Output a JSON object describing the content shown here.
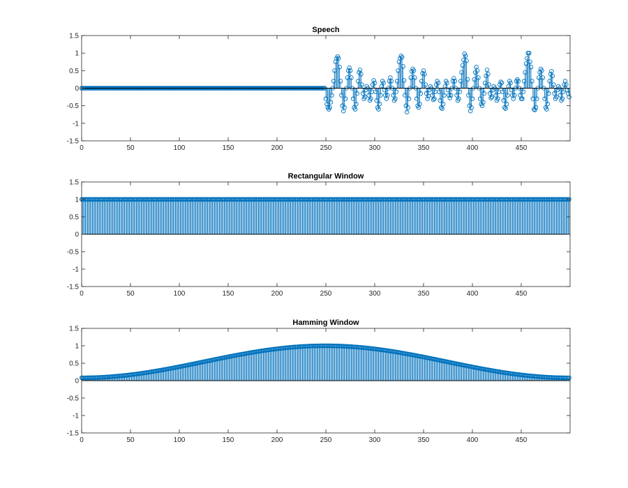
{
  "chart_data": [
    {
      "type": "stem",
      "title": "Speech",
      "xlim": [
        0,
        500
      ],
      "ylim": [
        -1.5,
        1.5
      ],
      "x_ticks": [
        0,
        50,
        100,
        150,
        200,
        250,
        300,
        350,
        400,
        450
      ],
      "x_tick_labels": [
        "0",
        "50",
        "100",
        "150",
        "200",
        "250",
        "300",
        "350",
        "400",
        "450"
      ],
      "y_ticks": [
        1.5,
        1,
        0.5,
        0,
        -0.5,
        -1,
        -1.5
      ],
      "y_tick_labels": [
        "1.5",
        "1",
        "0.5",
        "0",
        "-0.5",
        "-1",
        "-1.5"
      ],
      "n_samples": 500,
      "leading_zero_samples": 250,
      "values_from_sample_250": [
        -0.3,
        -0.45,
        -0.55,
        -0.6,
        -0.55,
        -0.4,
        -0.2,
        0.0,
        0.2,
        0.5,
        0.75,
        0.85,
        0.9,
        0.85,
        0.6,
        0.2,
        -0.2,
        -0.5,
        -0.65,
        -0.55,
        -0.3,
        0.0,
        0.3,
        0.5,
        0.58,
        0.5,
        0.3,
        0.0,
        -0.3,
        -0.55,
        -0.6,
        -0.45,
        -0.15,
        0.2,
        0.45,
        0.52,
        0.4,
        0.1,
        -0.15,
        -0.3,
        -0.25,
        -0.05,
        0.05,
        0.0,
        -0.2,
        -0.35,
        -0.3,
        -0.1,
        0.1,
        0.22,
        0.15,
        -0.1,
        -0.35,
        -0.55,
        -0.6,
        -0.45,
        -0.2,
        0.05,
        0.2,
        0.15,
        -0.05,
        -0.2,
        -0.3,
        -0.2,
        0.0,
        0.2,
        0.3,
        0.2,
        0.0,
        -0.2,
        -0.35,
        -0.3,
        -0.1,
        0.2,
        0.5,
        0.75,
        0.85,
        0.92,
        0.88,
        0.62,
        0.22,
        -0.2,
        -0.5,
        -0.68,
        -0.55,
        -0.3,
        0.0,
        0.3,
        0.48,
        0.55,
        0.5,
        0.3,
        0.0,
        -0.3,
        -0.5,
        -0.55,
        -0.45,
        -0.15,
        0.2,
        0.42,
        0.5,
        0.4,
        0.1,
        -0.15,
        -0.3,
        -0.22,
        -0.05,
        0.05,
        0.0,
        -0.2,
        -0.33,
        -0.3,
        -0.1,
        0.1,
        0.2,
        0.15,
        -0.1,
        -0.35,
        -0.55,
        -0.58,
        -0.45,
        -0.2,
        0.05,
        0.2,
        0.15,
        -0.05,
        -0.2,
        -0.28,
        -0.2,
        0.0,
        0.2,
        0.28,
        0.2,
        0.0,
        -0.2,
        -0.35,
        -0.3,
        -0.1,
        0.2,
        0.45,
        0.65,
        0.8,
        0.98,
        0.92,
        0.78,
        0.25,
        -0.2,
        -0.5,
        -0.65,
        -0.55,
        -0.3,
        0.0,
        0.25,
        0.45,
        0.6,
        0.5,
        0.3,
        0.0,
        -0.3,
        -0.45,
        -0.5,
        -0.4,
        -0.15,
        0.15,
        0.35,
        0.52,
        0.4,
        0.1,
        -0.15,
        -0.28,
        -0.25,
        -0.05,
        0.05,
        0.0,
        -0.2,
        -0.35,
        -0.3,
        -0.1,
        0.1,
        0.18,
        0.15,
        -0.1,
        -0.35,
        -0.55,
        -0.58,
        -0.45,
        -0.2,
        0.05,
        0.2,
        0.15,
        -0.05,
        -0.2,
        -0.3,
        -0.2,
        0.0,
        0.2,
        0.25,
        0.2,
        0.0,
        -0.2,
        -0.3,
        -0.3,
        -0.1,
        0.2,
        0.45,
        0.7,
        0.85,
        1.0,
        1.0,
        0.75,
        0.6,
        0.2,
        -0.3,
        -0.6,
        -0.62,
        -0.55,
        -0.3,
        0.0,
        0.3,
        0.45,
        0.55,
        0.5,
        0.3,
        0.0,
        -0.3,
        -0.55,
        -0.6,
        -0.45,
        -0.15,
        0.2,
        0.4,
        0.48,
        0.35,
        0.1,
        -0.15,
        -0.3,
        -0.25,
        -0.05,
        0.05,
        0.0,
        -0.2,
        -0.35,
        -0.3,
        -0.1,
        0.1,
        0.2,
        0.1,
        -0.05,
        -0.15,
        -0.25
      ]
    },
    {
      "type": "stem",
      "title": "Rectangular Window",
      "xlim": [
        0,
        500
      ],
      "ylim": [
        -1.5,
        1.5
      ],
      "x_ticks": [
        0,
        50,
        100,
        150,
        200,
        250,
        300,
        350,
        400,
        450
      ],
      "x_tick_labels": [
        "0",
        "50",
        "100",
        "150",
        "200",
        "250",
        "300",
        "350",
        "400",
        "450"
      ],
      "y_ticks": [
        1.5,
        1,
        0.5,
        0,
        -0.5,
        -1,
        -1.5
      ],
      "y_tick_labels": [
        "1.5",
        "1",
        "0.5",
        "0",
        "-0.5",
        "-1",
        "-1.5"
      ],
      "n_samples": 500,
      "window": "rectangular",
      "constant_value": 1
    },
    {
      "type": "stem",
      "title": "Hamming Window",
      "xlim": [
        0,
        500
      ],
      "ylim": [
        -1.5,
        1.5
      ],
      "x_ticks": [
        0,
        50,
        100,
        150,
        200,
        250,
        300,
        350,
        400,
        450
      ],
      "x_tick_labels": [
        "0",
        "50",
        "100",
        "150",
        "200",
        "250",
        "300",
        "350",
        "400",
        "450"
      ],
      "y_ticks": [
        1.5,
        1,
        0.5,
        0,
        -0.5,
        -1,
        -1.5
      ],
      "y_tick_labels": [
        "1.5",
        "1",
        "0.5",
        "0",
        "-0.5",
        "-1",
        "-1.5"
      ],
      "n_samples": 500,
      "window": "hamming",
      "hamming_coefficients": [
        0.54,
        0.46
      ],
      "min_value": 0.08,
      "max_value": 1.0
    }
  ],
  "colors": {
    "stem": "#0072BD",
    "axes": "#262626",
    "baseline": "#000000"
  }
}
